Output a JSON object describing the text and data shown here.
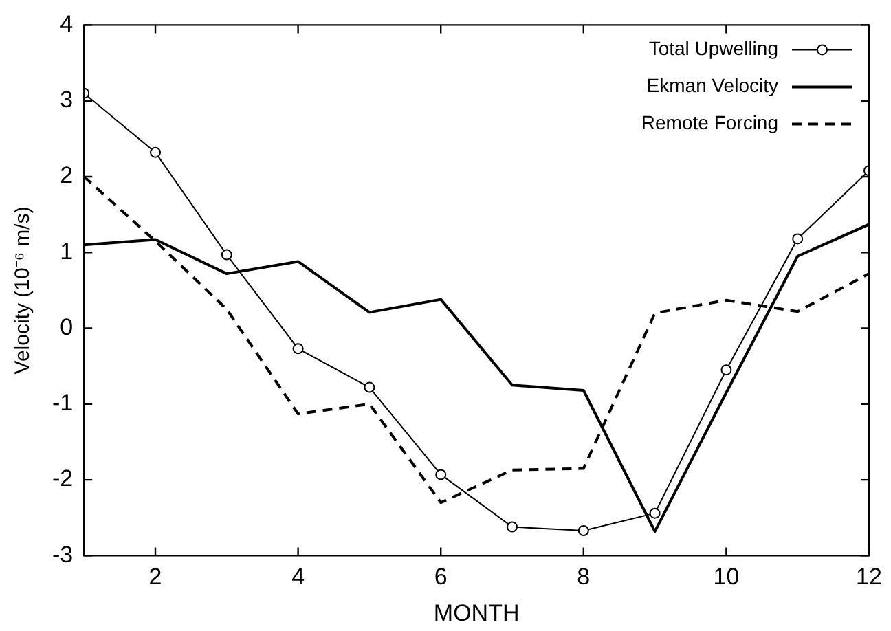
{
  "chart_data": {
    "type": "line",
    "xlabel": "MONTH",
    "ylabel": "Velocity (10⁻⁶ m/s)",
    "x": [
      1,
      2,
      3,
      4,
      5,
      6,
      7,
      8,
      9,
      10,
      11,
      12
    ],
    "series": [
      {
        "name": "Total Upwelling",
        "color": "#000000",
        "marker": "circle",
        "line_style": "solid",
        "values": [
          3.1,
          2.32,
          0.97,
          -0.27,
          -0.78,
          -1.93,
          -2.62,
          -2.67,
          -2.44,
          -0.55,
          1.18,
          2.08
        ]
      },
      {
        "name": "Ekman Velocity",
        "color": "#000000",
        "marker": "none",
        "line_style": "solid",
        "values": [
          1.1,
          1.17,
          0.72,
          0.88,
          0.21,
          0.38,
          -0.75,
          -0.82,
          -2.68,
          -0.85,
          0.95,
          1.37
        ]
      },
      {
        "name": "Remote Forcing",
        "color": "#000000",
        "marker": "none",
        "line_style": "dashed",
        "values": [
          2.0,
          1.15,
          0.25,
          -1.13,
          -1.0,
          -2.3,
          -1.87,
          -1.85,
          0.2,
          0.37,
          0.22,
          0.72
        ]
      }
    ],
    "xlim": [
      1,
      12
    ],
    "xticks": [
      2,
      4,
      6,
      8,
      10,
      12
    ],
    "ylim": [
      -3,
      4
    ],
    "yticks": [
      -3,
      -2,
      -1,
      0,
      1,
      2,
      3,
      4
    ],
    "grid": false,
    "legend": "top right"
  }
}
